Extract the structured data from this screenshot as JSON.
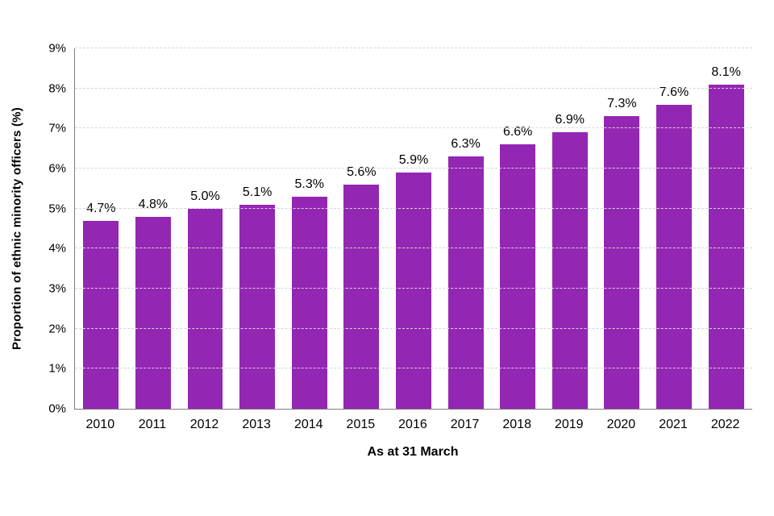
{
  "chart_data": {
    "type": "bar",
    "categories": [
      "2010",
      "2011",
      "2012",
      "2013",
      "2014",
      "2015",
      "2016",
      "2017",
      "2018",
      "2019",
      "2020",
      "2021",
      "2022"
    ],
    "values": [
      4.7,
      4.8,
      5.0,
      5.1,
      5.3,
      5.6,
      5.9,
      6.3,
      6.6,
      6.9,
      7.3,
      7.6,
      8.1
    ],
    "value_labels": [
      "4.7%",
      "4.8%",
      "5.0%",
      "5.1%",
      "5.3%",
      "5.6%",
      "5.9%",
      "6.3%",
      "6.6%",
      "6.9%",
      "7.3%",
      "7.6%",
      "8.1%"
    ],
    "title": "",
    "xlabel": "As at 31 March",
    "ylabel": "Proportion of ethnic minority officers (%)",
    "ylim": [
      0,
      9
    ],
    "yticks": [
      0,
      1,
      2,
      3,
      4,
      5,
      6,
      7,
      8,
      9
    ],
    "ytick_labels": [
      "0%",
      "1%",
      "2%",
      "3%",
      "4%",
      "5%",
      "6%",
      "7%",
      "8%",
      "9%"
    ],
    "bar_color": "#9326b2",
    "grid": "horizontal-dashed",
    "legend": "none"
  }
}
